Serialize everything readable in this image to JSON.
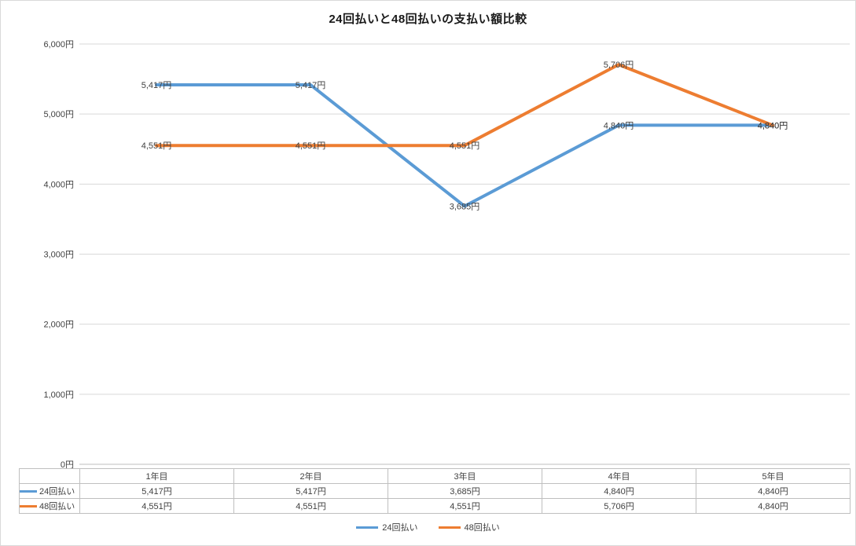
{
  "title": "24回払いと48回払いの支払い額比較",
  "colors": {
    "grid": "#d9d9d9",
    "axis": "#bfbfbf",
    "text": "#404040",
    "title": "#1a1a1a",
    "series1": "#5b9bd5",
    "series2": "#ed7d31"
  },
  "chart_data": {
    "type": "line",
    "title": "24回払いと48回払いの支払い額比較",
    "xlabel": "",
    "ylabel": "",
    "categories": [
      "1年目",
      "2年目",
      "3年目",
      "4年目",
      "5年目"
    ],
    "series": [
      {
        "name": "24回払い",
        "color": "#5b9bd5",
        "values": [
          5417,
          5417,
          3685,
          4840,
          4840
        ],
        "labels": [
          "5,417円",
          "5,417円",
          "3,685円",
          "4,840円",
          "4,840円"
        ]
      },
      {
        "name": "48回払い",
        "color": "#ed7d31",
        "values": [
          4551,
          4551,
          4551,
          5706,
          4840
        ],
        "labels": [
          "4,551円",
          "4,551円",
          "4,551円",
          "5,706円",
          "4,840円"
        ]
      }
    ],
    "ylim": [
      0,
      6000
    ],
    "ytick_step": 1000,
    "ytick_labels": [
      "0円",
      "1,000円",
      "2,000円",
      "3,000円",
      "4,000円",
      "5,000円",
      "6,000円"
    ],
    "grid": true,
    "legend_position": "bottom",
    "data_labels": true,
    "data_table_shown": true
  },
  "table": {
    "corner": "",
    "headers": [
      "1年目",
      "2年目",
      "3年目",
      "4年目",
      "5年目"
    ],
    "rows": [
      {
        "label": "24回払い",
        "cells": [
          "5,417円",
          "5,417円",
          "3,685円",
          "4,840円",
          "4,840円"
        ]
      },
      {
        "label": "48回払い",
        "cells": [
          "4,551円",
          "4,551円",
          "4,551円",
          "5,706円",
          "4,840円"
        ]
      }
    ]
  },
  "legend": {
    "items": [
      {
        "label": "24回払い"
      },
      {
        "label": "48回払い"
      }
    ]
  }
}
